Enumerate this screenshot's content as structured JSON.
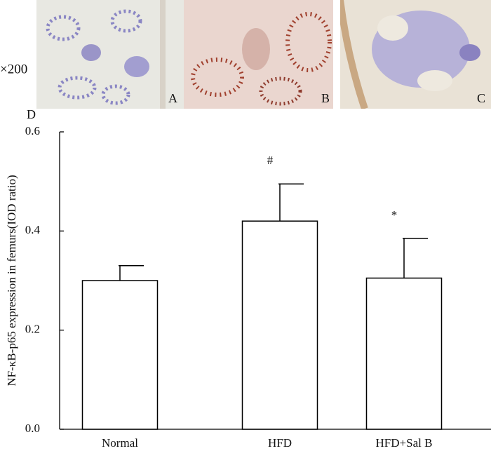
{
  "panels": {
    "magnification": "×200",
    "labels": [
      "A",
      "B",
      "C"
    ]
  },
  "chart_data": {
    "type": "bar",
    "panel_label": "D",
    "y_label": "NF-κB-p65 expression in femurs(IOD ratio)",
    "categories": [
      "Normal",
      "HFD",
      "HFD+Sal B"
    ],
    "values": [
      0.3,
      0.42,
      0.305
    ],
    "errors": [
      0.03,
      0.075,
      0.08
    ],
    "significance": [
      null,
      "#",
      "*"
    ],
    "color": "#ffffff",
    "ylim": [
      0,
      0.6
    ],
    "yticks": [
      {
        "value": 0,
        "label": "0.0"
      },
      {
        "value": 0.2,
        "label": "0.2"
      },
      {
        "value": 0.4,
        "label": "0.4"
      },
      {
        "value": 0.6,
        "label": "0.6"
      }
    ]
  }
}
